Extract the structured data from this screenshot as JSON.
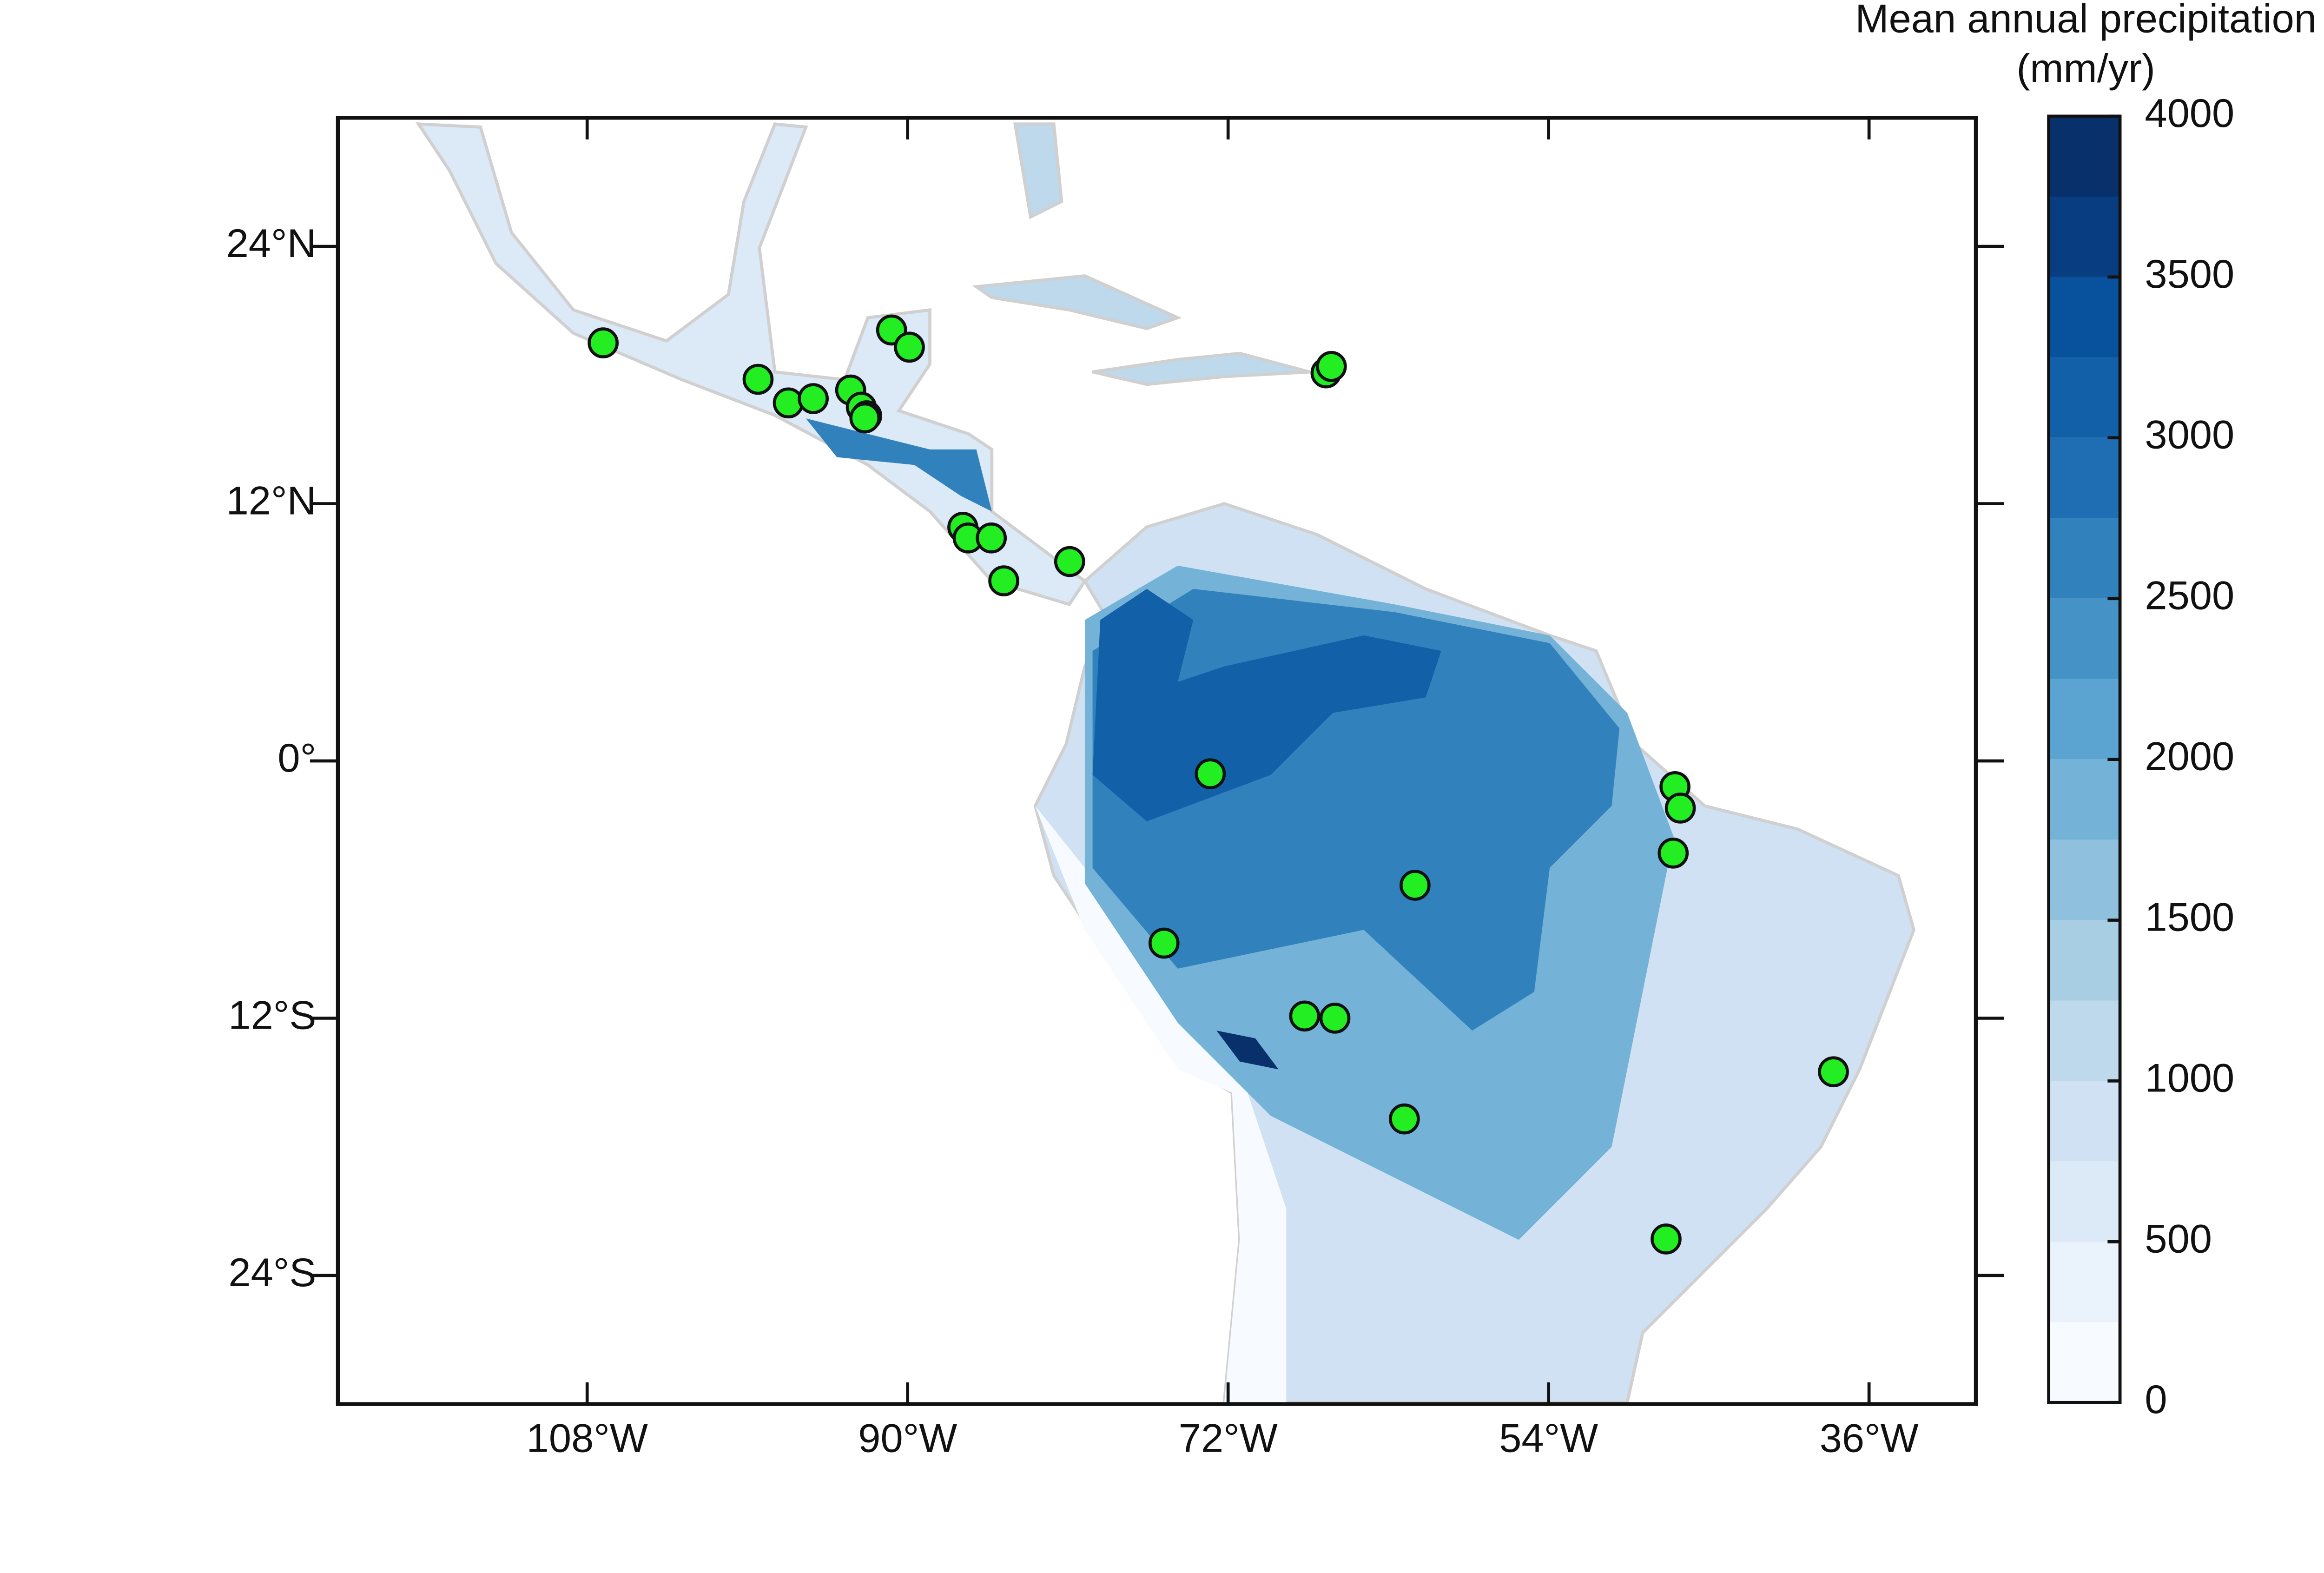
{
  "chart_data": {
    "type": "map",
    "colorbar_title": [
      "Mean annual precipitation",
      "(mm/yr)"
    ],
    "xlim": [
      -122,
      -30
    ],
    "ylim": [
      -30,
      30
    ],
    "xticks": [
      {
        "value": -108,
        "label": "108°W"
      },
      {
        "value": -90,
        "label": "90°W"
      },
      {
        "value": -72,
        "label": "72°W"
      },
      {
        "value": -54,
        "label": "54°W"
      },
      {
        "value": -36,
        "label": "36°W"
      }
    ],
    "yticks": [
      {
        "value": 24,
        "label": "24°N"
      },
      {
        "value": 12,
        "label": "12°N"
      },
      {
        "value": 0,
        "label": "0°"
      },
      {
        "value": -12,
        "label": "12°S"
      },
      {
        "value": -24,
        "label": "24°S"
      }
    ],
    "sites": {
      "color": "#22ee22",
      "lon": [
        -107.1,
        -98.4,
        -96.7,
        -95.3,
        -93.2,
        -92.6,
        -92.3,
        -92.4,
        -90.9,
        -89.9,
        -66.5,
        -66.2,
        -86.9,
        -86.6,
        -85.3,
        -84.6,
        -80.9,
        -73.0,
        -61.5,
        -75.6,
        -67.7,
        -66.0,
        -62.1,
        -47.4,
        -38.0,
        -46.9,
        -46.6,
        -47.0
      ],
      "lat": [
        19.5,
        17.8,
        16.7,
        16.9,
        17.3,
        16.5,
        16.1,
        16.0,
        20.1,
        19.3,
        18.1,
        18.4,
        10.9,
        10.4,
        10.4,
        8.4,
        9.3,
        -0.6,
        -5.8,
        -8.5,
        -11.9,
        -12.0,
        -16.7,
        -22.3,
        -14.5,
        -1.2,
        -2.2,
        -4.3
      ]
    },
    "colorbar": {
      "levels": [
        0,
        250,
        500,
        750,
        1000,
        1250,
        1500,
        1750,
        2000,
        2250,
        2500,
        2750,
        3000,
        3250,
        3500,
        3750,
        4000
      ],
      "colors": [
        "#f7fbff",
        "#eaf2fb",
        "#dce9f6",
        "#cfe1f2",
        "#bed8ec",
        "#a8cee4",
        "#8fc1de",
        "#74b2d7",
        "#5ba3d0",
        "#4592c6",
        "#3181bd",
        "#1f6eb3",
        "#1260a8",
        "#08519c",
        "#083e81",
        "#08306b"
      ],
      "ticks": [
        0,
        500,
        1000,
        1500,
        2000,
        2500,
        3000,
        3500,
        4000
      ]
    }
  }
}
